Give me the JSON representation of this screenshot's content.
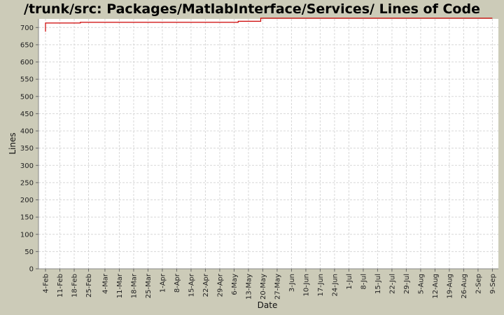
{
  "chart_data": {
    "type": "line",
    "title": "/trunk/src: Packages/MatlabInterface/Services/ Lines of Code",
    "xlabel": "Date",
    "ylabel": "Lines",
    "ylim": [
      0,
      725
    ],
    "y_ticks": [
      0,
      50,
      100,
      150,
      200,
      250,
      300,
      350,
      400,
      450,
      500,
      550,
      600,
      650,
      700
    ],
    "x_tick_labels": [
      "4-Feb",
      "11-Feb",
      "18-Feb",
      "25-Feb",
      "4-Mar",
      "11-Mar",
      "18-Mar",
      "25-Mar",
      "1-Apr",
      "8-Apr",
      "15-Apr",
      "22-Apr",
      "29-Apr",
      "6-May",
      "13-May",
      "20-May",
      "27-May",
      "3-Jun",
      "10-Jun",
      "17-Jun",
      "24-Jun",
      "1-Jul",
      "8-Jul",
      "15-Jul",
      "22-Jul",
      "29-Jul",
      "5-Aug",
      "12-Aug",
      "19-Aug",
      "26-Aug",
      "2-Sep",
      "9-Sep"
    ],
    "grid": true,
    "line_color": "#cc0000",
    "background_color": "#ffffff",
    "page_color": "#cccbb8",
    "series": [
      {
        "points": [
          {
            "x": "4-Feb",
            "y": 688
          },
          {
            "x": "4-Feb",
            "y": 713
          },
          {
            "x": "21-Feb",
            "y": 713
          },
          {
            "x": "21-Feb",
            "y": 715
          },
          {
            "x": "8-May",
            "y": 715
          },
          {
            "x": "8-May",
            "y": 718
          },
          {
            "x": "19-May",
            "y": 718
          },
          {
            "x": "19-May",
            "y": 727
          },
          {
            "x": "9-Sep",
            "y": 727
          }
        ]
      }
    ]
  }
}
